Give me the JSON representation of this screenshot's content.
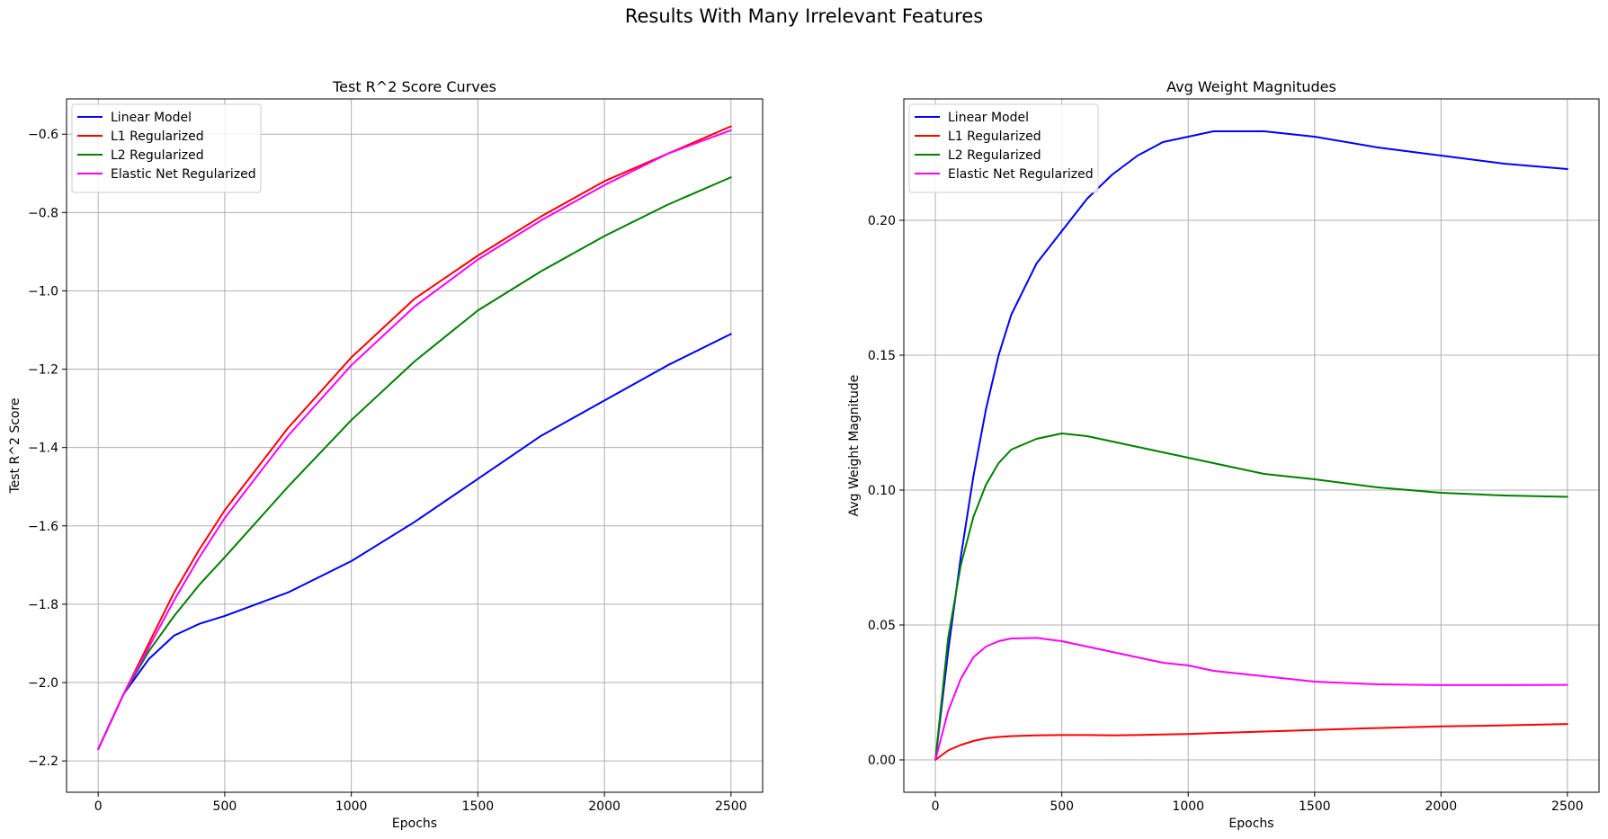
{
  "figure": {
    "suptitle": "Results With Many Irrelevant Features"
  },
  "chart_data": [
    {
      "type": "line",
      "title": "Test R^2 Score Curves",
      "xlabel": "Epochs",
      "ylabel": "Test R^2 Score",
      "xlim": [
        -125,
        2625
      ],
      "ylim": [
        -2.28,
        -0.51
      ],
      "xticks": [
        0,
        500,
        1000,
        1500,
        2000,
        2500
      ],
      "xtick_labels": [
        "0",
        "500",
        "1000",
        "1500",
        "2000",
        "2500"
      ],
      "yticks": [
        -2.2,
        -2.0,
        -1.8,
        -1.6,
        -1.4,
        -1.2,
        -1.0,
        -0.8,
        -0.6
      ],
      "ytick_labels": [
        "−2.2",
        "−2.0",
        "−1.8",
        "−1.6",
        "−1.4",
        "−1.2",
        "−1.0",
        "−0.8",
        "−0.6"
      ],
      "grid": true,
      "legend_position": "top-left",
      "x": [
        0,
        100,
        200,
        300,
        400,
        500,
        750,
        1000,
        1250,
        1500,
        1750,
        2000,
        2250,
        2500
      ],
      "series": [
        {
          "name": "Linear Model",
          "color": "#0000ff",
          "values": [
            -2.17,
            -2.03,
            -1.94,
            -1.88,
            -1.85,
            -1.83,
            -1.77,
            -1.69,
            -1.59,
            -1.48,
            -1.37,
            -1.28,
            -1.19,
            -1.11
          ]
        },
        {
          "name": "L1 Regularized",
          "color": "#ff0000",
          "values": [
            -2.17,
            -2.03,
            -1.9,
            -1.77,
            -1.66,
            -1.56,
            -1.35,
            -1.17,
            -1.02,
            -0.91,
            -0.81,
            -0.72,
            -0.65,
            -0.58
          ]
        },
        {
          "name": "L2 Regularized",
          "color": "#008000",
          "values": [
            -2.17,
            -2.03,
            -1.92,
            -1.83,
            -1.75,
            -1.68,
            -1.5,
            -1.33,
            -1.18,
            -1.05,
            -0.95,
            -0.86,
            -0.78,
            -0.71
          ]
        },
        {
          "name": "Elastic Net Regularized",
          "color": "#ff00ff",
          "values": [
            -2.17,
            -2.03,
            -1.91,
            -1.79,
            -1.68,
            -1.58,
            -1.37,
            -1.19,
            -1.04,
            -0.92,
            -0.82,
            -0.73,
            -0.65,
            -0.59
          ]
        }
      ]
    },
    {
      "type": "line",
      "title": "Avg Weight Magnitudes",
      "xlabel": "Epochs",
      "ylabel": "Avg Weight Magnitude",
      "xlim": [
        -125,
        2625
      ],
      "ylim": [
        -0.012,
        0.245
      ],
      "xticks": [
        0,
        500,
        1000,
        1500,
        2000,
        2500
      ],
      "xtick_labels": [
        "0",
        "500",
        "1000",
        "1500",
        "2000",
        "2500"
      ],
      "yticks": [
        0.0,
        0.05,
        0.1,
        0.15,
        0.2
      ],
      "ytick_labels": [
        "0.00",
        "0.05",
        "0.10",
        "0.15",
        "0.20"
      ],
      "grid": true,
      "legend_position": "top-left",
      "x": [
        0,
        50,
        100,
        150,
        200,
        250,
        300,
        400,
        500,
        600,
        700,
        800,
        900,
        1000,
        1100,
        1200,
        1300,
        1400,
        1500,
        1750,
        2000,
        2250,
        2500
      ],
      "series": [
        {
          "name": "Linear Model",
          "color": "#0000ff",
          "values": [
            0.0,
            0.04,
            0.075,
            0.105,
            0.13,
            0.15,
            0.165,
            0.184,
            0.196,
            0.208,
            0.217,
            0.224,
            0.229,
            0.231,
            0.233,
            0.233,
            0.233,
            0.232,
            0.231,
            0.227,
            0.224,
            0.221,
            0.219
          ]
        },
        {
          "name": "L1 Regularized",
          "color": "#ff0000",
          "values": [
            0.0,
            0.0035,
            0.0055,
            0.007,
            0.008,
            0.0085,
            0.0088,
            0.0091,
            0.0092,
            0.0092,
            0.0091,
            0.0092,
            0.0094,
            0.0096,
            0.0099,
            0.0102,
            0.0105,
            0.0108,
            0.0111,
            0.0118,
            0.0124,
            0.0128,
            0.0133
          ]
        },
        {
          "name": "L2 Regularized",
          "color": "#008000",
          "values": [
            0.0,
            0.045,
            0.072,
            0.09,
            0.102,
            0.11,
            0.115,
            0.119,
            0.121,
            0.12,
            0.118,
            0.116,
            0.114,
            0.112,
            0.11,
            0.108,
            0.106,
            0.105,
            0.104,
            0.101,
            0.099,
            0.098,
            0.0975
          ]
        },
        {
          "name": "Elastic Net Regularized",
          "color": "#ff00ff",
          "values": [
            0.0,
            0.018,
            0.03,
            0.038,
            0.042,
            0.044,
            0.045,
            0.0452,
            0.044,
            0.042,
            0.04,
            0.038,
            0.036,
            0.035,
            0.033,
            0.032,
            0.031,
            0.03,
            0.029,
            0.028,
            0.0277,
            0.0277,
            0.0278
          ]
        }
      ]
    }
  ]
}
